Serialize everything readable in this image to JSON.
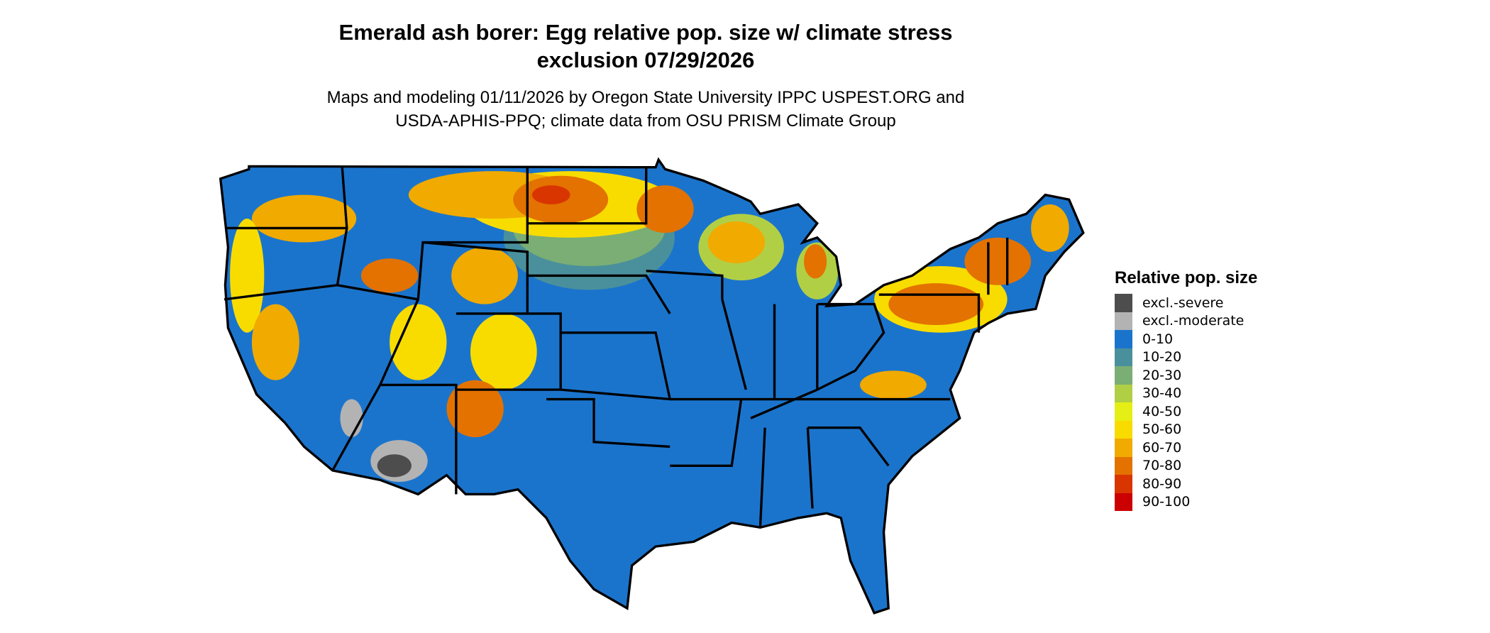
{
  "title": {
    "line1": "Emerald ash borer: Egg relative pop. size w/ climate stress",
    "line2": "exclusion 07/29/2026"
  },
  "subtitle": {
    "line1": "Maps and modeling 01/11/2026 by Oregon State University IPPC USPEST.ORG and",
    "line2": "USDA-APHIS-PPQ; climate data from OSU PRISM Climate Group"
  },
  "legend": {
    "title": "Relative pop. size",
    "items": [
      {
        "label": "excl.-severe",
        "color": "#4d4d4d"
      },
      {
        "label": "excl.-moderate",
        "color": "#b3b3b3"
      },
      {
        "label": "0-10",
        "color": "#1b74cc"
      },
      {
        "label": "10-20",
        "color": "#4a909c"
      },
      {
        "label": "20-30",
        "color": "#7aae74"
      },
      {
        "label": "30-40",
        "color": "#b1cf45"
      },
      {
        "label": "40-50",
        "color": "#e5ef15"
      },
      {
        "label": "50-60",
        "color": "#f8dc00"
      },
      {
        "label": "60-70",
        "color": "#f0aa00"
      },
      {
        "label": "70-80",
        "color": "#e37200"
      },
      {
        "label": "80-90",
        "color": "#d93500"
      },
      {
        "label": "90-100",
        "color": "#cc0000"
      }
    ]
  }
}
